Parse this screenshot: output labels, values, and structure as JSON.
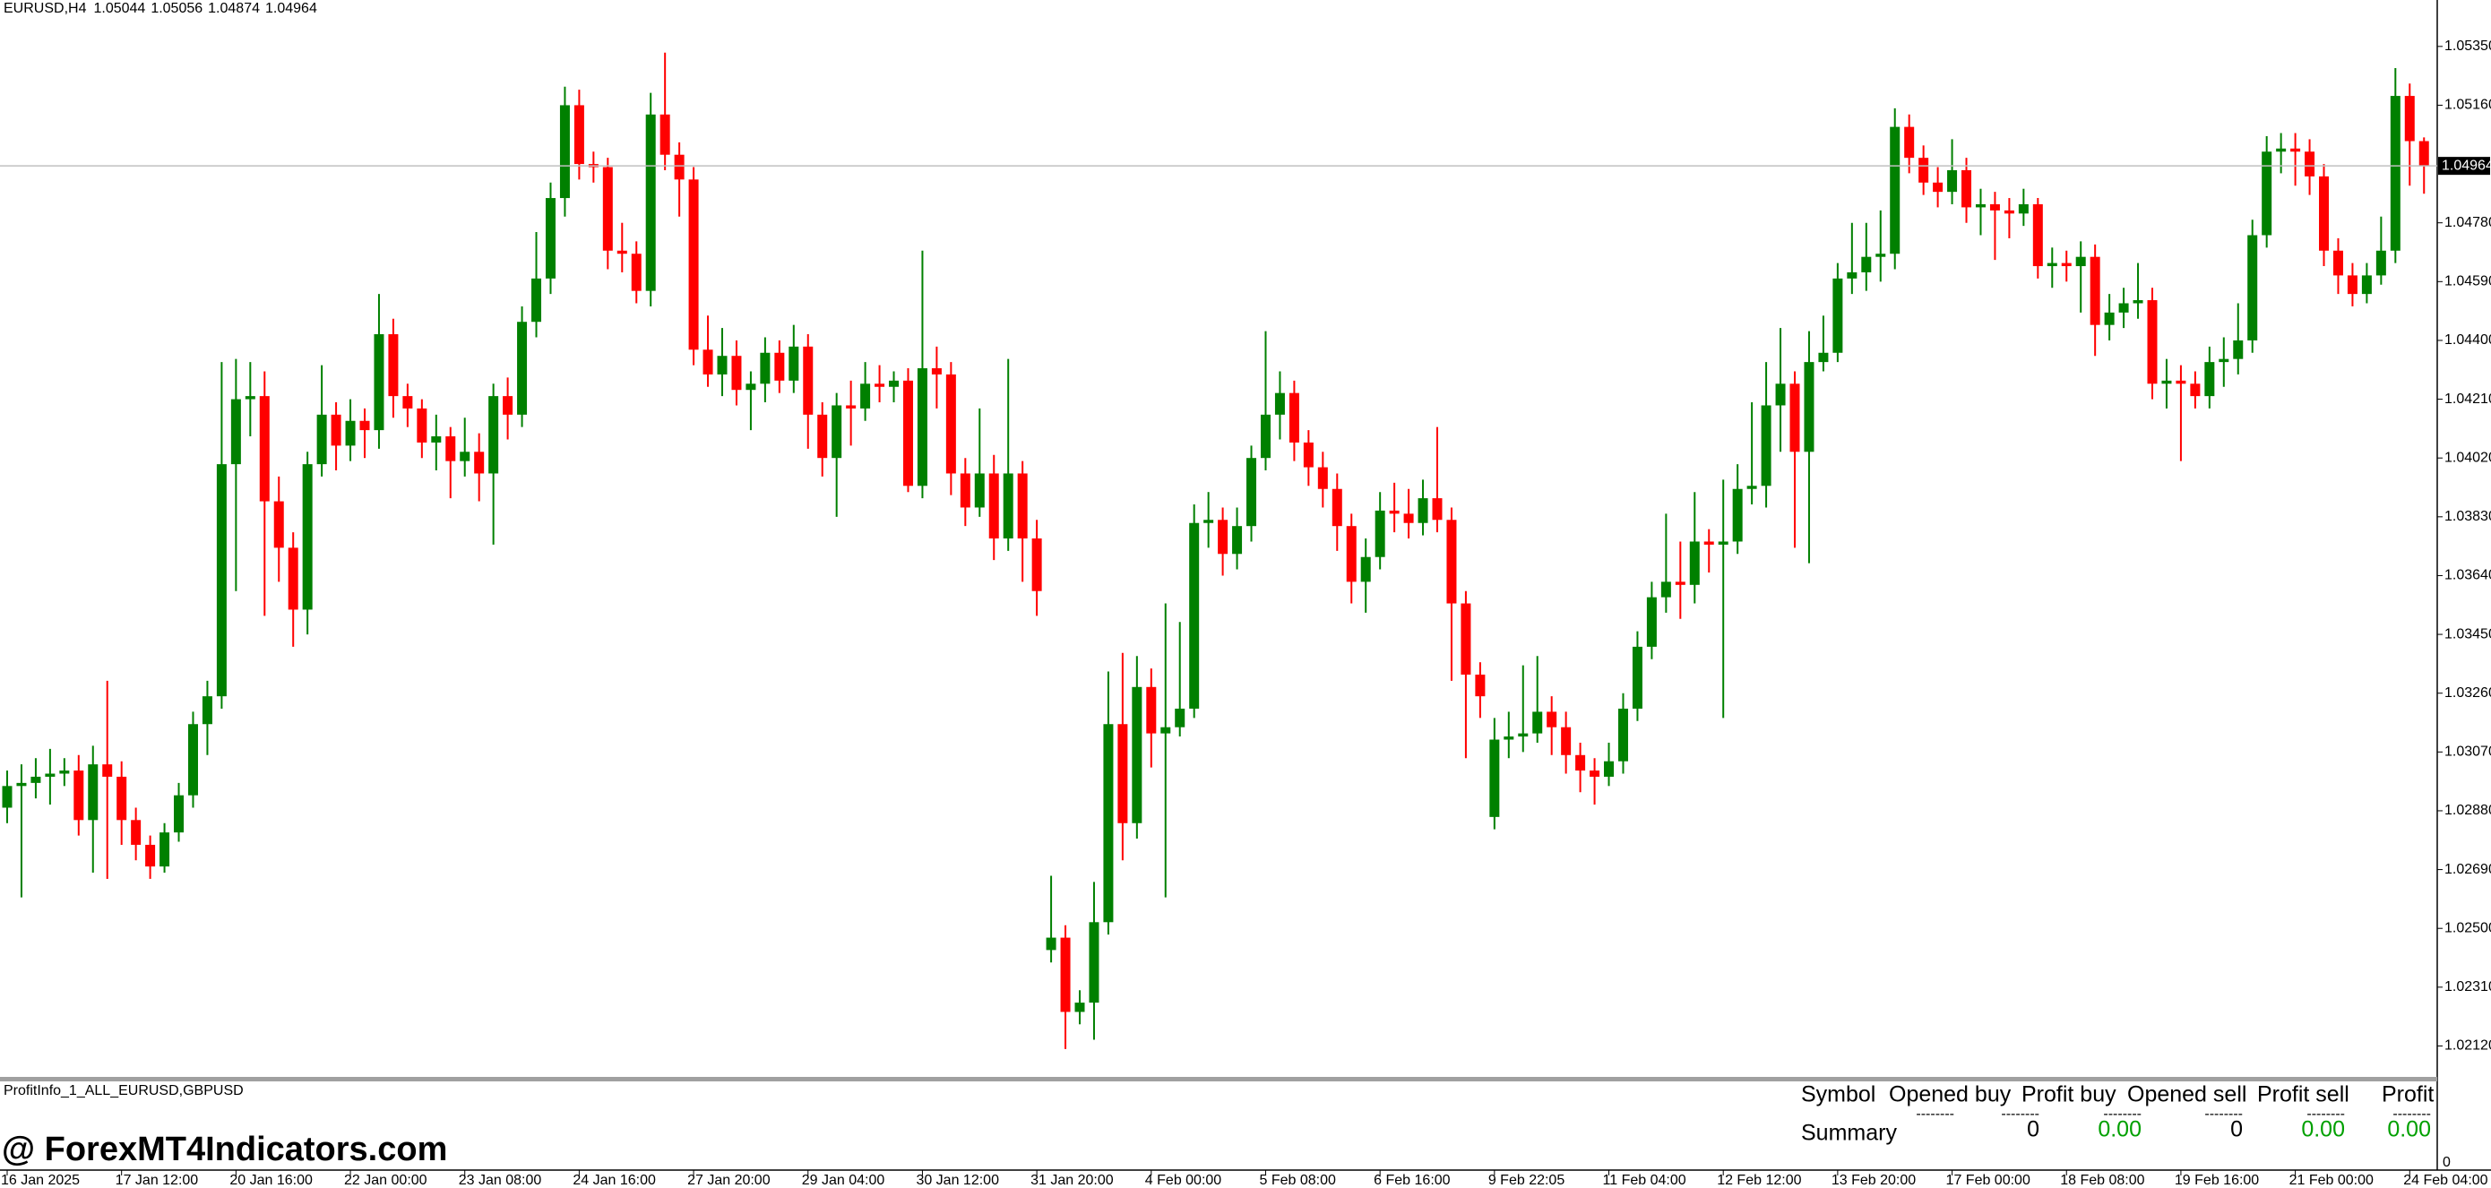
{
  "chart_data": {
    "type": "candlestick",
    "title": "EURUSD,H4",
    "colors": {
      "up": "#008000",
      "down": "#ff0000"
    },
    "grid": false,
    "ylim": [
      1.0202,
      1.055
    ],
    "yticks": [
      {
        "value": 1.0535,
        "label": "1.05350"
      },
      {
        "value": 1.0516,
        "label": "1.05160"
      },
      {
        "value": 1.0478,
        "label": "1.04780"
      },
      {
        "value": 1.0459,
        "label": "1.04590"
      },
      {
        "value": 1.044,
        "label": "1.04400"
      },
      {
        "value": 1.0421,
        "label": "1.04210"
      },
      {
        "value": 1.0402,
        "label": "1.04020"
      },
      {
        "value": 1.0383,
        "label": "1.03830"
      },
      {
        "value": 1.0364,
        "label": "1.03640"
      },
      {
        "value": 1.0345,
        "label": "1.03450"
      },
      {
        "value": 1.0326,
        "label": "1.03260"
      },
      {
        "value": 1.0307,
        "label": "1.03070"
      },
      {
        "value": 1.0288,
        "label": "1.02880"
      },
      {
        "value": 1.0269,
        "label": "1.02690"
      },
      {
        "value": 1.025,
        "label": "1.02500"
      },
      {
        "value": 1.0231,
        "label": "1.02310"
      },
      {
        "value": 1.0212,
        "label": "1.02120"
      }
    ],
    "categories": [
      "16 Jan 2025",
      null,
      null,
      null,
      null,
      null,
      null,
      null,
      "17 Jan 12:00",
      null,
      null,
      null,
      null,
      null,
      null,
      null,
      "20 Jan 16:00",
      null,
      null,
      null,
      null,
      null,
      null,
      null,
      "22 Jan 00:00",
      null,
      null,
      null,
      null,
      null,
      null,
      null,
      "23 Jan 08:00",
      null,
      null,
      null,
      null,
      null,
      null,
      null,
      "24 Jan 16:00",
      null,
      null,
      null,
      null,
      null,
      null,
      null,
      "27 Jan 20:00",
      null,
      null,
      null,
      null,
      null,
      null,
      null,
      "29 Jan 04:00",
      null,
      null,
      null,
      null,
      null,
      null,
      null,
      "30 Jan 12:00",
      null,
      null,
      null,
      null,
      null,
      null,
      null,
      "31 Jan 20:00",
      null,
      null,
      null,
      null,
      null,
      null,
      null,
      "4 Feb 00:00",
      null,
      null,
      null,
      null,
      null,
      null,
      null,
      "5 Feb 08:00",
      null,
      null,
      null,
      null,
      null,
      null,
      null,
      "6 Feb 16:00",
      null,
      null,
      null,
      null,
      null,
      null,
      null,
      "9 Feb 22:05",
      null,
      null,
      null,
      null,
      null,
      null,
      null,
      "11 Feb 04:00",
      null,
      null,
      null,
      null,
      null,
      null,
      null,
      "12 Feb 12:00",
      null,
      null,
      null,
      null,
      null,
      null,
      null,
      "13 Feb 20:00",
      null,
      null,
      null,
      null,
      null,
      null,
      null,
      "17 Feb 00:00",
      null,
      null,
      null,
      null,
      null,
      null,
      null,
      "18 Feb 08:00",
      null,
      null,
      null,
      null,
      null,
      null,
      null,
      "19 Feb 16:00",
      null,
      null,
      null,
      null,
      null,
      null,
      null,
      "21 Feb 00:00",
      null,
      null,
      null,
      null,
      null,
      null,
      null,
      "24 Feb 04:00",
      null
    ],
    "open": [
      1.0289,
      1.0296,
      1.0297,
      1.0299,
      1.03,
      1.0301,
      1.0285,
      1.0303,
      1.0299,
      1.0285,
      1.0277,
      1.027,
      1.0281,
      1.0293,
      1.0316,
      1.0325,
      1.04,
      1.0421,
      1.0422,
      1.0388,
      1.0373,
      1.0353,
      1.04,
      1.0416,
      1.0406,
      1.0414,
      1.0411,
      1.0442,
      1.0422,
      1.0418,
      1.0407,
      1.0409,
      1.0401,
      1.0404,
      1.0397,
      1.0422,
      1.0416,
      1.0446,
      1.046,
      1.0486,
      1.0516,
      1.0497,
      1.0496,
      1.0469,
      1.0468,
      1.0456,
      1.0513,
      1.05,
      1.0492,
      1.0437,
      1.0429,
      1.0435,
      1.0424,
      1.0426,
      1.0436,
      1.0427,
      1.0438,
      1.0416,
      1.0402,
      1.0419,
      1.0418,
      1.0426,
      1.0425,
      1.0427,
      1.0393,
      1.0431,
      1.0429,
      1.0397,
      1.0386,
      1.0397,
      1.0376,
      1.0397,
      1.0376,
      1.0243,
      1.0247,
      1.0223,
      1.0226,
      1.0252,
      1.0316,
      1.0284,
      1.0328,
      1.0313,
      1.0315,
      1.0321,
      1.0381,
      1.0382,
      1.0371,
      1.038,
      1.0402,
      1.0416,
      1.0423,
      1.0407,
      1.0399,
      1.0392,
      1.038,
      1.0362,
      1.037,
      1.0385,
      1.0384,
      1.0381,
      1.0389,
      1.0382,
      1.0355,
      1.0332,
      1.0286,
      1.0311,
      1.0312,
      1.0313,
      1.032,
      1.0315,
      1.0306,
      1.0301,
      1.0299,
      1.0304,
      1.0321,
      1.0341,
      1.0357,
      1.0362,
      1.0361,
      1.0375,
      1.0374,
      1.0375,
      1.0392,
      1.0393,
      1.0419,
      1.0426,
      1.0404,
      1.0433,
      1.0436,
      1.046,
      1.0462,
      1.0467,
      1.0468,
      1.0509,
      1.0499,
      1.0491,
      1.0488,
      1.0495,
      1.0483,
      1.0484,
      1.0482,
      1.0481,
      1.0484,
      1.0464,
      1.0465,
      1.0464,
      1.0467,
      1.0445,
      1.0449,
      1.0452,
      1.0453,
      1.0426,
      1.0427,
      1.0426,
      1.0422,
      1.0433,
      1.0434,
      1.044,
      1.0474,
      1.0501,
      1.0502,
      1.0501,
      1.0493,
      1.0469,
      1.0461,
      1.0455,
      1.0461,
      1.0469,
      1.0519,
      1.05044
    ],
    "high": [
      1.0301,
      1.0303,
      1.0305,
      1.0308,
      1.0305,
      1.0306,
      1.0309,
      1.033,
      1.0304,
      1.0289,
      1.028,
      1.0284,
      1.0297,
      1.032,
      1.033,
      1.0433,
      1.0434,
      1.0433,
      1.043,
      1.0396,
      1.0378,
      1.0404,
      1.0432,
      1.042,
      1.0421,
      1.0418,
      1.0455,
      1.0447,
      1.0426,
      1.0421,
      1.0416,
      1.0412,
      1.0415,
      1.041,
      1.0426,
      1.0428,
      1.0451,
      1.0475,
      1.0491,
      1.0522,
      1.0521,
      1.0501,
      1.0499,
      1.0478,
      1.0472,
      1.052,
      1.0533,
      1.0504,
      1.0496,
      1.0448,
      1.0444,
      1.044,
      1.043,
      1.0441,
      1.044,
      1.0445,
      1.0442,
      1.042,
      1.0423,
      1.0427,
      1.0433,
      1.0432,
      1.043,
      1.0431,
      1.0469,
      1.0438,
      1.0433,
      1.0402,
      1.0418,
      1.0403,
      1.0434,
      1.0401,
      1.0382,
      1.0267,
      1.0251,
      1.023,
      1.0265,
      1.0333,
      1.0339,
      1.0338,
      1.0334,
      1.0355,
      1.0349,
      1.0387,
      1.0391,
      1.0386,
      1.0386,
      1.0406,
      1.0443,
      1.043,
      1.0427,
      1.0411,
      1.0404,
      1.0397,
      1.0384,
      1.0376,
      1.0391,
      1.0394,
      1.0392,
      1.0395,
      1.0412,
      1.0386,
      1.0359,
      1.0336,
      1.0318,
      1.032,
      1.0335,
      1.0338,
      1.0325,
      1.032,
      1.031,
      1.0305,
      1.031,
      1.0326,
      1.0346,
      1.0362,
      1.0384,
      1.0375,
      1.0391,
      1.0379,
      1.0395,
      1.04,
      1.042,
      1.0433,
      1.0444,
      1.043,
      1.0443,
      1.0448,
      1.0465,
      1.0478,
      1.0478,
      1.0482,
      1.0515,
      1.0513,
      1.0503,
      1.0496,
      1.0505,
      1.0499,
      1.0489,
      1.0488,
      1.0486,
      1.0489,
      1.0486,
      1.047,
      1.0469,
      1.0472,
      1.0471,
      1.0455,
      1.0457,
      1.0465,
      1.0457,
      1.0434,
      1.0432,
      1.043,
      1.0438,
      1.0441,
      1.0452,
      1.0479,
      1.0506,
      1.0507,
      1.0507,
      1.0505,
      1.0497,
      1.0473,
      1.0465,
      1.0465,
      1.048,
      1.0528,
      1.0523,
      1.05056
    ],
    "low": [
      1.0284,
      1.026,
      1.0292,
      1.029,
      1.0296,
      1.028,
      1.0268,
      1.0266,
      1.0277,
      1.0272,
      1.0266,
      1.0268,
      1.0278,
      1.0289,
      1.0306,
      1.0321,
      1.0359,
      1.0409,
      1.0351,
      1.0362,
      1.0341,
      1.0345,
      1.0396,
      1.0398,
      1.0401,
      1.0402,
      1.0405,
      1.0415,
      1.0412,
      1.0402,
      1.0398,
      1.0389,
      1.0396,
      1.0388,
      1.0374,
      1.0408,
      1.0412,
      1.0441,
      1.0455,
      1.048,
      1.0492,
      1.0491,
      1.0463,
      1.0462,
      1.0452,
      1.0451,
      1.0495,
      1.048,
      1.0432,
      1.0425,
      1.0422,
      1.0419,
      1.0411,
      1.042,
      1.0423,
      1.0423,
      1.0405,
      1.0396,
      1.0383,
      1.0406,
      1.0414,
      1.042,
      1.042,
      1.0391,
      1.0389,
      1.0418,
      1.039,
      1.038,
      1.0383,
      1.0369,
      1.0372,
      1.0362,
      1.0351,
      1.0239,
      1.0211,
      1.0219,
      1.0214,
      1.0248,
      1.0272,
      1.0279,
      1.0302,
      1.026,
      1.0312,
      1.0318,
      1.0373,
      1.0364,
      1.0366,
      1.0375,
      1.0398,
      1.0408,
      1.0401,
      1.0393,
      1.0386,
      1.0372,
      1.0355,
      1.0352,
      1.0366,
      1.0378,
      1.0376,
      1.0377,
      1.0378,
      1.033,
      1.0305,
      1.0318,
      1.0282,
      1.0305,
      1.0307,
      1.031,
      1.0306,
      1.03,
      1.0294,
      1.029,
      1.0296,
      1.03,
      1.0317,
      1.0337,
      1.0352,
      1.035,
      1.0355,
      1.0365,
      1.0318,
      1.0371,
      1.0387,
      1.0386,
      1.0404,
      1.0373,
      1.0368,
      1.043,
      1.0433,
      1.0455,
      1.0456,
      1.0459,
      1.0463,
      1.0494,
      1.0487,
      1.0483,
      1.0484,
      1.0478,
      1.0474,
      1.0466,
      1.0473,
      1.0477,
      1.046,
      1.0457,
      1.0459,
      1.0449,
      1.0435,
      1.044,
      1.0444,
      1.0447,
      1.0421,
      1.0418,
      1.0401,
      1.0418,
      1.0418,
      1.0425,
      1.0429,
      1.0436,
      1.047,
      1.0494,
      1.049,
      1.0487,
      1.0464,
      1.0455,
      1.0451,
      1.0452,
      1.0458,
      1.0465,
      1.049,
      1.04874
    ],
    "close": [
      1.0296,
      1.0297,
      1.0299,
      1.03,
      1.0301,
      1.0285,
      1.0303,
      1.0299,
      1.0285,
      1.0277,
      1.027,
      1.0281,
      1.0293,
      1.0316,
      1.0325,
      1.04,
      1.0421,
      1.0422,
      1.0388,
      1.0373,
      1.0353,
      1.04,
      1.0416,
      1.0406,
      1.0414,
      1.0411,
      1.0442,
      1.0422,
      1.0418,
      1.0407,
      1.0409,
      1.0401,
      1.0404,
      1.0397,
      1.0422,
      1.0416,
      1.0446,
      1.046,
      1.0486,
      1.0516,
      1.0497,
      1.0496,
      1.0469,
      1.0468,
      1.0456,
      1.0513,
      1.05,
      1.0492,
      1.0437,
      1.0429,
      1.0435,
      1.0424,
      1.0426,
      1.0436,
      1.0427,
      1.0438,
      1.0416,
      1.0402,
      1.0419,
      1.0418,
      1.0426,
      1.0425,
      1.0427,
      1.0393,
      1.0431,
      1.0429,
      1.0397,
      1.0386,
      1.0397,
      1.0376,
      1.0397,
      1.0376,
      1.0359,
      1.0247,
      1.0223,
      1.0226,
      1.0252,
      1.0316,
      1.0284,
      1.0328,
      1.0313,
      1.0315,
      1.0321,
      1.0381,
      1.0382,
      1.0371,
      1.038,
      1.0402,
      1.0416,
      1.0423,
      1.0407,
      1.0399,
      1.0392,
      1.038,
      1.0362,
      1.037,
      1.0385,
      1.0384,
      1.0381,
      1.0389,
      1.0382,
      1.0355,
      1.0332,
      1.0325,
      1.0311,
      1.0312,
      1.0313,
      1.032,
      1.0315,
      1.0306,
      1.0301,
      1.0299,
      1.0304,
      1.0321,
      1.0341,
      1.0357,
      1.0362,
      1.0361,
      1.0375,
      1.0374,
      1.0375,
      1.0392,
      1.0393,
      1.0419,
      1.0426,
      1.0404,
      1.0433,
      1.0436,
      1.046,
      1.0462,
      1.0467,
      1.0468,
      1.0509,
      1.0499,
      1.0491,
      1.0488,
      1.0495,
      1.0483,
      1.0484,
      1.0482,
      1.0481,
      1.0484,
      1.0464,
      1.0465,
      1.0464,
      1.0467,
      1.0445,
      1.0449,
      1.0452,
      1.0453,
      1.0426,
      1.0427,
      1.0426,
      1.0422,
      1.0433,
      1.0434,
      1.044,
      1.0474,
      1.0501,
      1.0502,
      1.0501,
      1.0493,
      1.0469,
      1.0461,
      1.0455,
      1.0461,
      1.0469,
      1.0519,
      1.05044,
      1.04964
    ]
  },
  "indicator": {
    "name": "ProfitInfo_1_ALL_EURUSD,GBPUSD",
    "headers": [
      "Symbol",
      "Opened buy",
      "Profit buy",
      "Opened sell",
      "Profit sell",
      "Profit"
    ],
    "separators": [
      "--------",
      "--------",
      "--------",
      "--------",
      "--------",
      "--------"
    ],
    "row": [
      "Summary",
      "0",
      "0.00",
      "0",
      "0.00",
      "0.00"
    ],
    "axis_label": "0"
  },
  "watermark": "@ ForexMT4Indicators.com"
}
